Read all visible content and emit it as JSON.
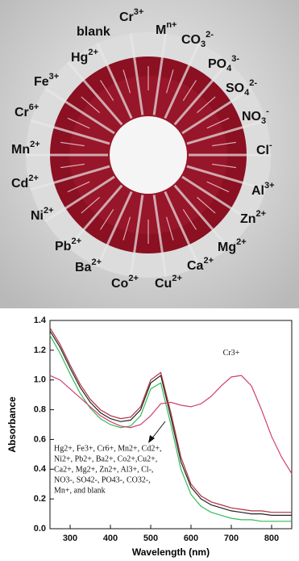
{
  "photo": {
    "labels": [
      {
        "base": "blank"
      },
      {
        "base": "Cr",
        "sup": "3+"
      },
      {
        "base": "M",
        "sup": "n+"
      },
      {
        "base": "CO",
        "sub": "3",
        "sup": "2-"
      },
      {
        "base": "PO",
        "sub": "4",
        "sup": "3-"
      },
      {
        "base": "SO",
        "sub": "4",
        "sup": "2-"
      },
      {
        "base": "NO",
        "sub": "3",
        "sup": "-"
      },
      {
        "base": "Cl",
        "sup": "-"
      },
      {
        "base": "Al",
        "sup": "3+"
      },
      {
        "base": "Zn",
        "sup": "2+"
      },
      {
        "base": "Mg",
        "sup": "2+"
      },
      {
        "base": "Ca",
        "sup": "2+"
      },
      {
        "base": "Cu",
        "sup": "2+"
      },
      {
        "base": "Co",
        "sup": "2+"
      },
      {
        "base": "Ba",
        "sup": "2+"
      },
      {
        "base": "Pb",
        "sup": "2+"
      },
      {
        "base": "Ni",
        "sup": "2+"
      },
      {
        "base": "Cd",
        "sup": "2+"
      },
      {
        "base": "Mn",
        "sup": "2+"
      },
      {
        "base": "Cr",
        "sup": "6+"
      },
      {
        "base": "Fe",
        "sup": "3+"
      },
      {
        "base": "Hg",
        "sup": "2+"
      }
    ]
  },
  "chart_data": {
    "type": "line",
    "xlabel": "Wavelength (nm)",
    "ylabel": "Absorbance",
    "xlim": [
      250,
      850
    ],
    "xticks": [
      300,
      400,
      500,
      600,
      700,
      800
    ],
    "ylim": [
      0,
      1.4
    ],
    "yticks": [
      {
        "value": 0,
        "label": "0.0"
      },
      0.2,
      0.4,
      0.6,
      0.8,
      {
        "value": 1,
        "label": "1.0"
      },
      1.2,
      1.4
    ],
    "x": [
      250,
      275,
      300,
      325,
      350,
      375,
      400,
      425,
      450,
      475,
      500,
      525,
      550,
      575,
      600,
      625,
      650,
      675,
      700,
      725,
      750,
      775,
      800,
      825,
      850
    ],
    "series": [
      {
        "color": "#33bb55",
        "values": [
          1.3,
          1.18,
          1.04,
          0.91,
          0.81,
          0.74,
          0.7,
          0.68,
          0.69,
          0.76,
          0.94,
          0.98,
          0.7,
          0.4,
          0.23,
          0.15,
          0.11,
          0.09,
          0.07,
          0.06,
          0.06,
          0.05,
          0.05,
          0.05,
          0.05
        ]
      },
      {
        "color": "#222222",
        "values": [
          1.33,
          1.22,
          1.08,
          0.95,
          0.85,
          0.78,
          0.74,
          0.72,
          0.73,
          0.8,
          0.98,
          1.03,
          0.75,
          0.45,
          0.28,
          0.2,
          0.16,
          0.14,
          0.12,
          0.11,
          0.1,
          0.1,
          0.09,
          0.09,
          0.09
        ]
      },
      {
        "color": "#b03040",
        "values": [
          1.35,
          1.24,
          1.1,
          0.97,
          0.87,
          0.8,
          0.76,
          0.74,
          0.75,
          0.82,
          1.0,
          1.05,
          0.78,
          0.48,
          0.3,
          0.22,
          0.18,
          0.16,
          0.14,
          0.13,
          0.12,
          0.12,
          0.11,
          0.11,
          0.11
        ]
      },
      {
        "name": "Cr3+",
        "color": "#d04070",
        "values": [
          1.03,
          1.0,
          0.94,
          0.88,
          0.82,
          0.76,
          0.72,
          0.69,
          0.68,
          0.7,
          0.76,
          0.84,
          0.85,
          0.83,
          0.82,
          0.84,
          0.89,
          0.96,
          1.02,
          1.03,
          0.96,
          0.8,
          0.62,
          0.48,
          0.37
        ]
      }
    ],
    "annotation": [
      "Hg2+, Fe3+, Cr6+, Mn2+, Cd2+,",
      "Ni2+, Pb2+, Ba2+, Co2+,Cu2+,",
      "Ca2+, Mg2+, Zn2+, Al3+, Cl-,",
      "NO3-, SO42-, PO43-, CO32-,",
      "Mn+, and blank"
    ]
  }
}
